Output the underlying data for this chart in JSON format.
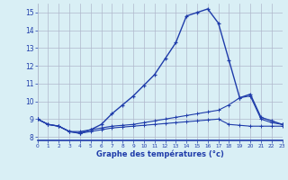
{
  "hours": [
    0,
    1,
    2,
    3,
    4,
    5,
    6,
    7,
    8,
    9,
    10,
    11,
    12,
    13,
    14,
    15,
    16,
    17,
    18,
    19,
    20,
    21,
    22,
    23
  ],
  "temp": [
    9.0,
    8.7,
    8.6,
    8.3,
    8.2,
    8.4,
    8.7,
    9.3,
    9.8,
    10.3,
    10.9,
    11.5,
    12.4,
    13.3,
    14.8,
    15.0,
    15.2,
    14.4,
    12.3,
    10.2,
    10.4,
    9.1,
    8.9,
    8.7
  ],
  "dew1": [
    9.0,
    8.7,
    8.6,
    8.3,
    8.3,
    8.4,
    8.5,
    8.6,
    8.65,
    8.7,
    8.8,
    8.9,
    9.0,
    9.1,
    9.2,
    9.3,
    9.4,
    9.5,
    9.8,
    10.2,
    10.3,
    9.0,
    8.8,
    8.7
  ],
  "dew2": [
    9.0,
    8.7,
    8.6,
    8.3,
    8.2,
    8.3,
    8.4,
    8.5,
    8.55,
    8.6,
    8.65,
    8.7,
    8.75,
    8.8,
    8.85,
    8.9,
    8.95,
    9.0,
    8.7,
    8.65,
    8.6,
    8.6,
    8.6,
    8.6
  ],
  "line_color": "#1f3caa",
  "bg_color": "#d9eff5",
  "grid_color": "#b0b8cc",
  "xlabel": "Graphe des températures (°c)",
  "ylim": [
    7.8,
    15.5
  ],
  "xlim": [
    0,
    23
  ],
  "yticks": [
    8,
    9,
    10,
    11,
    12,
    13,
    14,
    15
  ]
}
